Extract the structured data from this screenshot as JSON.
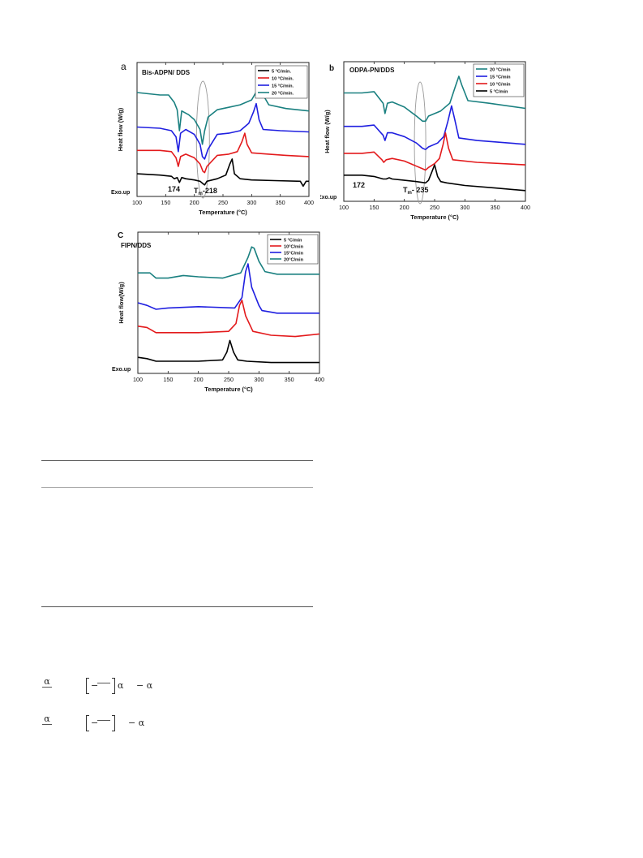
{
  "figure": {
    "panels": [
      {
        "id": "a",
        "tag": "a",
        "title": "Bis-ADPN/ DDS",
        "xlabel": "Temperature (°C)",
        "ylabel": "Heat flow (W/g)",
        "exo_label": "Exo.up",
        "annotations": [
          "174",
          "Tm-218"
        ],
        "legend_position": "top-right",
        "legend": [
          "5 °C/min.",
          "10 °C/min.",
          "15 °C/min.",
          "20 °C/min."
        ]
      },
      {
        "id": "b",
        "tag": "b",
        "title": "ODPA-PN/DDS",
        "xlabel": "Temperature (°C)",
        "ylabel": "Heat flow (W/g)",
        "exo_label": "Exo.up",
        "annotations": [
          "172",
          "Tm- 235"
        ],
        "legend_position": "top-right",
        "legend": [
          "20 °C/min",
          "15 °C/min",
          "10 °C/min",
          "5 °C/min"
        ]
      },
      {
        "id": "c",
        "tag": "C",
        "title": "FIPN/DDS",
        "xlabel": "Temperature (°C)",
        "ylabel": "Heat flow(W/g)",
        "exo_label": "Exo.up",
        "annotations": [],
        "legend_position": "top-right",
        "legend": [
          "5 °C/min",
          "10°C/min",
          "15°C/min",
          "20°C/min"
        ]
      }
    ]
  },
  "chart_data": [
    {
      "type": "line",
      "panel": "a",
      "title": "Bis-ADPN/ DDS",
      "xlabel": "Temperature (°C)",
      "ylabel": "Heat flow (W/g)",
      "xlim": [
        100,
        400
      ],
      "xticks": [
        100,
        150,
        200,
        250,
        300,
        350,
        400
      ],
      "ylim": [
        0,
        1
      ],
      "grid": false,
      "legend_position": "top-right",
      "series": [
        {
          "name": "5 °C/min.",
          "color": "#000000",
          "x": [
            100,
            140,
            160,
            165,
            170,
            174,
            178,
            185,
            200,
            210,
            215,
            218,
            222,
            240,
            255,
            262,
            266,
            270,
            280,
            300,
            340,
            385,
            390,
            395,
            400
          ],
          "y": [
            0.14,
            0.13,
            0.12,
            0.1,
            0.11,
            0.07,
            0.11,
            0.1,
            0.09,
            0.08,
            0.06,
            0.05,
            0.08,
            0.1,
            0.13,
            0.22,
            0.26,
            0.14,
            0.1,
            0.09,
            0.085,
            0.08,
            0.04,
            0.08,
            0.08
          ]
        },
        {
          "name": "10 °C/min.",
          "color": "#e31a1c",
          "x": [
            100,
            140,
            160,
            168,
            172,
            176,
            185,
            200,
            210,
            215,
            218,
            222,
            240,
            260,
            275,
            283,
            288,
            292,
            300,
            330,
            360,
            400
          ],
          "y": [
            0.33,
            0.33,
            0.32,
            0.27,
            0.2,
            0.28,
            0.3,
            0.27,
            0.22,
            0.16,
            0.15,
            0.2,
            0.29,
            0.3,
            0.32,
            0.4,
            0.47,
            0.38,
            0.31,
            0.3,
            0.29,
            0.28
          ]
        },
        {
          "name": "15 °C/min.",
          "color": "#1f1fe0",
          "x": [
            100,
            140,
            160,
            168,
            172,
            176,
            185,
            200,
            210,
            214,
            218,
            224,
            240,
            260,
            280,
            295,
            303,
            308,
            313,
            320,
            350,
            400
          ],
          "y": [
            0.52,
            0.51,
            0.49,
            0.44,
            0.32,
            0.47,
            0.5,
            0.46,
            0.38,
            0.28,
            0.26,
            0.34,
            0.46,
            0.47,
            0.49,
            0.55,
            0.64,
            0.71,
            0.58,
            0.5,
            0.49,
            0.48
          ]
        },
        {
          "name": "20 °C/min.",
          "color": "#1a8080",
          "x": [
            100,
            140,
            155,
            165,
            170,
            174,
            178,
            190,
            200,
            210,
            214,
            218,
            224,
            240,
            260,
            280,
            300,
            310,
            315,
            320,
            330,
            360,
            400
          ],
          "y": [
            0.8,
            0.78,
            0.78,
            0.72,
            0.66,
            0.49,
            0.65,
            0.62,
            0.58,
            0.5,
            0.38,
            0.49,
            0.6,
            0.66,
            0.68,
            0.7,
            0.74,
            0.82,
            0.86,
            0.78,
            0.7,
            0.67,
            0.65
          ]
        }
      ]
    },
    {
      "type": "line",
      "panel": "b",
      "title": "ODPA-PN/DDS",
      "xlabel": "Temperature (°C)",
      "ylabel": "Heat flow (W/g)",
      "xlim": [
        100,
        400
      ],
      "xticks": [
        100,
        150,
        200,
        250,
        300,
        350,
        400
      ],
      "ylim": [
        0,
        1
      ],
      "grid": false,
      "legend_position": "top-right",
      "series": [
        {
          "name": "20 °C/min",
          "color": "#1a8080",
          "x": [
            100,
            130,
            150,
            165,
            168,
            172,
            180,
            200,
            220,
            230,
            235,
            240,
            260,
            275,
            285,
            290,
            295,
            305,
            340,
            400
          ],
          "y": [
            0.8,
            0.8,
            0.81,
            0.72,
            0.64,
            0.72,
            0.73,
            0.69,
            0.62,
            0.58,
            0.58,
            0.62,
            0.66,
            0.72,
            0.86,
            0.93,
            0.86,
            0.74,
            0.72,
            0.68
          ]
        },
        {
          "name": "15 °C/min",
          "color": "#1f1fe0",
          "x": [
            100,
            130,
            150,
            165,
            168,
            172,
            180,
            200,
            220,
            230,
            235,
            240,
            255,
            265,
            272,
            278,
            283,
            290,
            320,
            400
          ],
          "y": [
            0.54,
            0.54,
            0.55,
            0.47,
            0.43,
            0.49,
            0.49,
            0.46,
            0.41,
            0.37,
            0.36,
            0.38,
            0.41,
            0.46,
            0.58,
            0.7,
            0.6,
            0.45,
            0.43,
            0.4
          ]
        },
        {
          "name": "10 °C/min",
          "color": "#e31a1c",
          "x": [
            100,
            130,
            150,
            163,
            166,
            170,
            180,
            200,
            220,
            230,
            235,
            240,
            250,
            258,
            264,
            268,
            273,
            280,
            320,
            400
          ],
          "y": [
            0.33,
            0.33,
            0.34,
            0.28,
            0.26,
            0.28,
            0.29,
            0.27,
            0.23,
            0.21,
            0.2,
            0.22,
            0.25,
            0.29,
            0.4,
            0.49,
            0.37,
            0.28,
            0.26,
            0.24
          ]
        },
        {
          "name": "5 °C/min",
          "color": "#000000",
          "x": [
            100,
            130,
            150,
            165,
            170,
            175,
            180,
            200,
            220,
            235,
            240,
            245,
            250,
            255,
            260,
            270,
            300,
            350,
            400
          ],
          "y": [
            0.16,
            0.16,
            0.15,
            0.13,
            0.13,
            0.14,
            0.13,
            0.12,
            0.11,
            0.1,
            0.12,
            0.18,
            0.24,
            0.15,
            0.11,
            0.1,
            0.08,
            0.06,
            0.04
          ]
        }
      ]
    },
    {
      "type": "line",
      "panel": "c",
      "title": "FIPN/DDS",
      "xlabel": "Temperature (°C)",
      "ylabel": "Heat flow(W/g)",
      "xlim": [
        100,
        400
      ],
      "xticks": [
        100,
        150,
        200,
        250,
        300,
        350,
        400
      ],
      "ylim": [
        0,
        1
      ],
      "grid": false,
      "legend_position": "top-right",
      "series": [
        {
          "name": "5 °C/min",
          "color": "#000000",
          "x": [
            100,
            115,
            130,
            150,
            200,
            240,
            247,
            252,
            258,
            265,
            280,
            320,
            400
          ],
          "y": [
            0.08,
            0.07,
            0.05,
            0.05,
            0.05,
            0.06,
            0.12,
            0.21,
            0.12,
            0.06,
            0.05,
            0.04,
            0.04
          ]
        },
        {
          "name": "10°C/min",
          "color": "#e31a1c",
          "x": [
            100,
            115,
            130,
            150,
            200,
            250,
            262,
            268,
            272,
            278,
            290,
            320,
            360,
            400
          ],
          "y": [
            0.32,
            0.31,
            0.27,
            0.27,
            0.27,
            0.28,
            0.34,
            0.48,
            0.52,
            0.4,
            0.28,
            0.25,
            0.24,
            0.26
          ]
        },
        {
          "name": "15°C/min",
          "color": "#1f1fe0",
          "x": [
            100,
            115,
            130,
            150,
            200,
            260,
            272,
            278,
            282,
            288,
            300,
            305,
            330,
            400
          ],
          "y": [
            0.5,
            0.48,
            0.45,
            0.46,
            0.47,
            0.46,
            0.54,
            0.74,
            0.8,
            0.62,
            0.48,
            0.44,
            0.42,
            0.42
          ]
        },
        {
          "name": "20°C/min",
          "color": "#1a8080",
          "x": [
            100,
            120,
            130,
            150,
            175,
            200,
            240,
            270,
            282,
            288,
            292,
            300,
            310,
            330,
            400
          ],
          "y": [
            0.73,
            0.73,
            0.69,
            0.69,
            0.71,
            0.7,
            0.69,
            0.73,
            0.85,
            0.93,
            0.92,
            0.82,
            0.74,
            0.72,
            0.72
          ]
        }
      ]
    }
  ],
  "equations": [
    {
      "lhs": "α",
      "bracket_content": "−",
      "after_bracket": "α",
      "tail": "− α"
    },
    {
      "lhs": "α",
      "bracket_content": "−",
      "after_bracket": "",
      "tail": "− α"
    }
  ]
}
